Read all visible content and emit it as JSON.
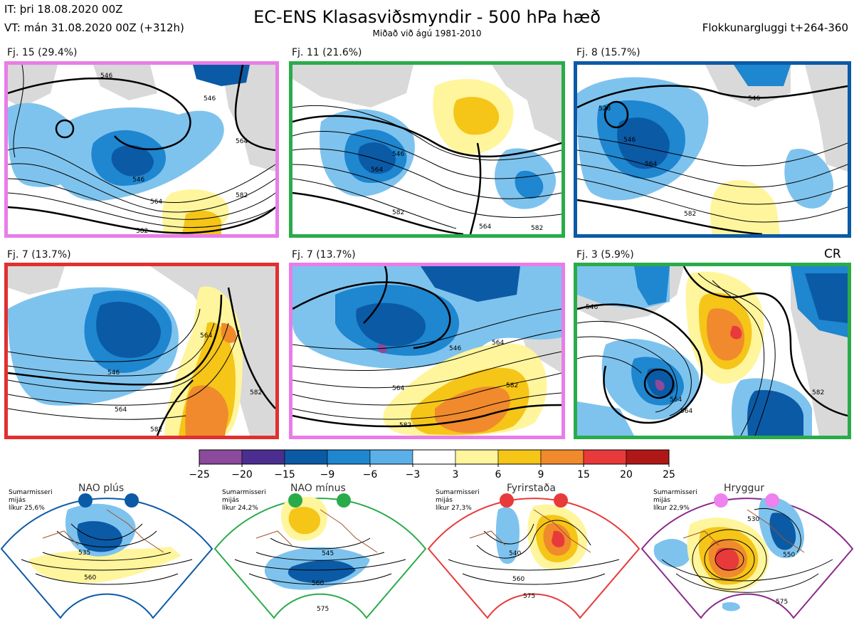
{
  "header": {
    "it": "IT: þri 18.08.2020 00Z",
    "vt": "VT: mán 31.08.2020 00Z  (+312h)",
    "title": "EC-ENS Klasasviðsmyndir - 500 hPa hæð",
    "subtitle": "Miðað við ágú 1981-2010",
    "window": "Flokkunargluggi t+264-360"
  },
  "panels": [
    {
      "label": "Fj. 15 (29.4%)",
      "border": "#e87de8",
      "contours": [
        "546",
        "546",
        "564",
        "546",
        "564",
        "582",
        "582"
      ]
    },
    {
      "label": "Fj. 11 (21.6%)",
      "border": "#2aab4a",
      "contours": [
        "546",
        "564",
        "582",
        "564",
        "582"
      ]
    },
    {
      "label": "Fj. 8 (15.7%)",
      "border": "#0b5aa6",
      "contours": [
        "546",
        "528",
        "546",
        "564",
        "582"
      ]
    },
    {
      "label": "Fj. 7 (13.7%)",
      "border": "#e03030",
      "contours": [
        "546",
        "564",
        "564",
        "582",
        "582"
      ]
    },
    {
      "label": "Fj. 7 (13.7%)",
      "border": "#e87de8",
      "contours": [
        "546",
        "564",
        "564",
        "582",
        "582"
      ]
    },
    {
      "label": "Fj. 3 (5.9%)",
      "border": "#2aab4a",
      "contours": [
        "546",
        "564",
        "564",
        "582"
      ]
    }
  ],
  "cr_label": "CR",
  "colorbar": {
    "ticks": [
      "−25",
      "−20",
      "−15",
      "−9",
      "−6",
      "−3",
      "3",
      "6",
      "9",
      "15",
      "20",
      "25"
    ],
    "colors": [
      "#8b4a9c",
      "#4b2e8f",
      "#0b5aa6",
      "#1f86d0",
      "#5bb0e8",
      "#ffffff",
      "#fff59d",
      "#f5c518",
      "#f08a2c",
      "#e83a3a",
      "#b01818"
    ]
  },
  "regimes": [
    {
      "name": "NAO plús",
      "line1": "Sumarmisseri",
      "line2": "mijás",
      "line3": "líkur 25,6%",
      "dot_color": "#0b5aa6",
      "border": "#0b5aa6",
      "contours": [
        "535",
        "560"
      ]
    },
    {
      "name": "NAO mínus",
      "line1": "Sumarmisseri",
      "line2": "mijás",
      "line3": "líkur 24,2%",
      "dot_color": "#2aab4a",
      "border": "#2aab4a",
      "contours": [
        "545",
        "560",
        "575"
      ]
    },
    {
      "name": "Fyrirstaða",
      "line1": "Sumarmisseri",
      "line2": "mijás",
      "line3": "líkur 27,3%",
      "dot_color": "#e83a3a",
      "border": "#e83a3a",
      "contours": [
        "540",
        "560",
        "575"
      ]
    },
    {
      "name": "Hryggur",
      "line1": "Sumarmisseri",
      "line2": "mijás",
      "line3": "líkur 22,9%",
      "dot_color": "#ee82ee",
      "border": "#8b2a8b",
      "contours": [
        "530",
        "550",
        "575"
      ]
    }
  ]
}
